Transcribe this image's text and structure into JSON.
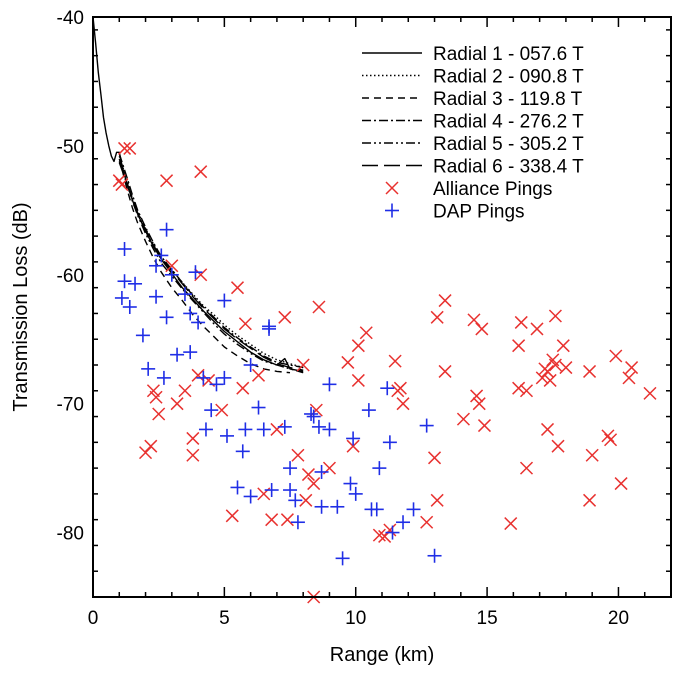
{
  "chart_data": {
    "type": "line",
    "xlabel": "Range (km)",
    "ylabel": "Transmission Loss (dB)",
    "xlim": [
      0,
      22
    ],
    "ylim": [
      -85,
      -40
    ],
    "xticks": [
      0,
      5,
      10,
      15,
      20
    ],
    "yticks": [
      -40,
      -50,
      -60,
      -70,
      -80
    ],
    "grid": false,
    "legend_position": "top-right",
    "series": [
      {
        "name": "Radial 1 - 057.6 T",
        "style": "solid",
        "color": "#000000",
        "x": [
          0.0,
          0.1,
          0.2,
          0.3,
          0.4,
          0.5,
          0.6,
          0.7,
          0.8,
          0.9,
          1.0,
          1.1,
          1.3,
          1.5,
          1.7,
          2.0,
          2.3,
          2.6,
          3.0,
          3.4,
          3.8,
          4.2,
          4.6,
          5.0,
          5.5,
          6.0,
          6.5,
          7.0,
          7.3,
          7.5,
          8.0
        ],
        "y": [
          -40.0,
          -42.0,
          -44.3,
          -46.0,
          -47.8,
          -49.0,
          -50.0,
          -50.8,
          -51.2,
          -50.5,
          -50.5,
          -51.5,
          -53.0,
          -54.2,
          -55.3,
          -56.6,
          -57.8,
          -58.8,
          -59.9,
          -61.0,
          -61.9,
          -62.8,
          -63.6,
          -64.4,
          -65.2,
          -66.0,
          -66.6,
          -67.0,
          -66.5,
          -67.3,
          -67.5
        ]
      },
      {
        "name": "Radial 2 - 090.8 T",
        "style": "dotted",
        "color": "#000000",
        "x": [
          1.0,
          1.3,
          1.5,
          1.7,
          2.0,
          2.3,
          2.6,
          3.0,
          3.4,
          3.8,
          4.2,
          4.6,
          5.0,
          5.5,
          6.0,
          6.5,
          7.0,
          7.5,
          8.0
        ],
        "y": [
          -50.8,
          -52.7,
          -54.0,
          -55.1,
          -56.4,
          -57.6,
          -58.6,
          -59.6,
          -60.6,
          -61.5,
          -62.4,
          -63.1,
          -63.9,
          -64.7,
          -65.4,
          -66.1,
          -66.6,
          -66.9,
          -67.2
        ]
      },
      {
        "name": "Radial 3 - 119.8 T",
        "style": "dashed",
        "color": "#000000",
        "x": [
          1.0,
          1.3,
          1.5,
          1.7,
          2.0,
          2.3,
          2.6,
          3.0,
          3.4,
          3.8,
          4.2,
          4.6,
          5.0,
          5.5,
          6.0,
          6.5,
          7.0,
          7.5
        ],
        "y": [
          -51.0,
          -53.4,
          -54.8,
          -56.0,
          -57.4,
          -58.7,
          -59.8,
          -61.0,
          -62.0,
          -63.1,
          -64.0,
          -64.8,
          -65.6,
          -66.3,
          -66.9,
          -67.3,
          -67.5,
          -67.6
        ]
      },
      {
        "name": "Radial 4 - 276.2 T",
        "style": "dashdot",
        "color": "#000000",
        "x": [
          1.0,
          1.3,
          1.5,
          1.7,
          2.0,
          2.3,
          2.6,
          3.0,
          3.4,
          3.8,
          4.2,
          4.6,
          5.0,
          5.5,
          6.0,
          6.5,
          7.0,
          7.5,
          8.0
        ],
        "y": [
          -50.6,
          -52.5,
          -53.8,
          -55.0,
          -56.3,
          -57.5,
          -58.6,
          -59.6,
          -60.6,
          -61.6,
          -62.5,
          -63.3,
          -64.1,
          -64.9,
          -65.6,
          -66.3,
          -66.8,
          -67.0,
          -67.2
        ]
      },
      {
        "name": "Radial 5 - 305.2 T",
        "style": "dashdotdot",
        "color": "#000000",
        "x": [
          1.0,
          1.3,
          1.5,
          1.7,
          2.0,
          2.3,
          2.6,
          3.0,
          3.4,
          3.8,
          4.2,
          4.6,
          5.0,
          5.5,
          6.0,
          6.5,
          7.0,
          7.5,
          8.0
        ],
        "y": [
          -51.3,
          -53.0,
          -54.3,
          -55.4,
          -56.8,
          -58.0,
          -59.1,
          -60.1,
          -61.1,
          -62.0,
          -62.9,
          -63.8,
          -64.6,
          -65.4,
          -66.1,
          -66.7,
          -67.0,
          -67.3,
          -67.6
        ]
      },
      {
        "name": "Radial 6 - 338.4 T",
        "style": "longdash",
        "color": "#000000",
        "x": [
          1.0,
          1.3,
          1.5,
          1.7,
          2.0,
          2.3,
          2.6,
          3.0,
          3.4,
          3.8,
          4.2,
          4.6,
          5.0,
          5.5,
          6.0,
          6.5,
          7.0,
          7.5,
          8.0
        ],
        "y": [
          -51.2,
          -52.9,
          -54.1,
          -55.2,
          -56.5,
          -57.7,
          -58.7,
          -59.7,
          -60.7,
          -61.7,
          -62.6,
          -63.4,
          -64.2,
          -65.0,
          -65.7,
          -66.4,
          -66.9,
          -67.2,
          -67.4
        ]
      }
    ],
    "scatter": [
      {
        "name": "Alliance Pings",
        "marker": "x",
        "color": "#e8312f",
        "points": [
          [
            1.0,
            -52.7
          ],
          [
            1.1,
            -53.0
          ],
          [
            1.2,
            -50.2
          ],
          [
            1.4,
            -50.2
          ],
          [
            2.0,
            -73.8
          ],
          [
            2.2,
            -73.3
          ],
          [
            2.3,
            -69.0
          ],
          [
            2.4,
            -69.5
          ],
          [
            2.5,
            -70.8
          ],
          [
            2.8,
            -52.7
          ],
          [
            3.0,
            -59.3
          ],
          [
            3.2,
            -70.0
          ],
          [
            3.5,
            -69.0
          ],
          [
            3.8,
            -74.0
          ],
          [
            3.8,
            -72.7
          ],
          [
            4.0,
            -67.8
          ],
          [
            4.1,
            -52.0
          ],
          [
            4.1,
            -60.0
          ],
          [
            4.4,
            -68.2
          ],
          [
            4.9,
            -70.5
          ],
          [
            5.3,
            -78.7
          ],
          [
            5.5,
            -61.0
          ],
          [
            5.7,
            -68.8
          ],
          [
            5.8,
            -63.8
          ],
          [
            6.3,
            -67.8
          ],
          [
            6.5,
            -77.0
          ],
          [
            6.8,
            -79.0
          ],
          [
            7.0,
            -72.0
          ],
          [
            7.3,
            -63.3
          ],
          [
            7.4,
            -79.0
          ],
          [
            7.8,
            -74.0
          ],
          [
            8.0,
            -67.0
          ],
          [
            8.1,
            -77.5
          ],
          [
            8.2,
            -75.5
          ],
          [
            8.4,
            -76.2
          ],
          [
            8.4,
            -85.0
          ],
          [
            8.5,
            -70.5
          ],
          [
            8.6,
            -62.5
          ],
          [
            9.0,
            -75.0
          ],
          [
            9.7,
            -66.8
          ],
          [
            9.9,
            -73.3
          ],
          [
            10.1,
            -68.2
          ],
          [
            10.1,
            -65.5
          ],
          [
            10.4,
            -64.5
          ],
          [
            10.9,
            -80.2
          ],
          [
            11.1,
            -80.3
          ],
          [
            11.3,
            -79.8
          ],
          [
            11.5,
            -66.7
          ],
          [
            11.6,
            -69.0
          ],
          [
            11.7,
            -68.8
          ],
          [
            11.8,
            -70.0
          ],
          [
            12.7,
            -79.2
          ],
          [
            13.0,
            -74.2
          ],
          [
            13.1,
            -63.3
          ],
          [
            13.1,
            -77.5
          ],
          [
            13.4,
            -62.0
          ],
          [
            13.4,
            -67.5
          ],
          [
            14.1,
            -71.2
          ],
          [
            14.5,
            -63.5
          ],
          [
            14.6,
            -69.4
          ],
          [
            14.7,
            -70.0
          ],
          [
            14.8,
            -64.2
          ],
          [
            14.9,
            -71.7
          ],
          [
            15.9,
            -79.3
          ],
          [
            16.2,
            -68.8
          ],
          [
            16.2,
            -65.5
          ],
          [
            16.3,
            -63.7
          ],
          [
            16.5,
            -75.0
          ],
          [
            16.5,
            -69.0
          ],
          [
            16.9,
            -64.2
          ],
          [
            17.1,
            -68.0
          ],
          [
            17.2,
            -67.3
          ],
          [
            17.3,
            -67.5
          ],
          [
            17.4,
            -68.2
          ],
          [
            17.5,
            -66.6
          ],
          [
            17.6,
            -67.0
          ],
          [
            17.7,
            -73.3
          ],
          [
            17.9,
            -65.5
          ],
          [
            18.0,
            -67.2
          ],
          [
            18.9,
            -67.5
          ],
          [
            18.9,
            -77.5
          ],
          [
            19.0,
            -74.0
          ],
          [
            19.6,
            -72.5
          ],
          [
            19.7,
            -72.8
          ],
          [
            19.9,
            -66.3
          ],
          [
            20.1,
            -76.2
          ],
          [
            20.4,
            -68.0
          ],
          [
            20.5,
            -67.2
          ],
          [
            21.2,
            -69.2
          ],
          [
            17.3,
            -72.0
          ],
          [
            17.6,
            -63.2
          ]
        ]
      },
      {
        "name": "DAP Pings",
        "marker": "+",
        "color": "#1f2ee6",
        "points": [
          [
            1.1,
            -61.8
          ],
          [
            1.2,
            -58.0
          ],
          [
            1.2,
            -60.5
          ],
          [
            1.4,
            -62.5
          ],
          [
            1.6,
            -60.7
          ],
          [
            1.9,
            -64.7
          ],
          [
            2.1,
            -67.3
          ],
          [
            2.4,
            -59.3
          ],
          [
            2.4,
            -61.7
          ],
          [
            2.6,
            -58.5
          ],
          [
            2.7,
            -68.0
          ],
          [
            2.8,
            -63.3
          ],
          [
            2.8,
            -56.5
          ],
          [
            3.0,
            -60.0
          ],
          [
            3.2,
            -66.2
          ],
          [
            3.5,
            -61.5
          ],
          [
            3.7,
            -66.0
          ],
          [
            3.7,
            -63.0
          ],
          [
            3.9,
            -59.8
          ],
          [
            4.0,
            -63.7
          ],
          [
            4.2,
            -68.0
          ],
          [
            4.3,
            -72.0
          ],
          [
            4.5,
            -70.5
          ],
          [
            4.7,
            -68.5
          ],
          [
            5.0,
            -68.0
          ],
          [
            5.0,
            -62.0
          ],
          [
            5.1,
            -72.5
          ],
          [
            5.5,
            -76.5
          ],
          [
            5.7,
            -73.7
          ],
          [
            5.8,
            -72.0
          ],
          [
            6.0,
            -67.0
          ],
          [
            6.0,
            -77.2
          ],
          [
            6.3,
            -70.3
          ],
          [
            6.5,
            -72.0
          ],
          [
            6.7,
            -64.0
          ],
          [
            6.7,
            -64.2
          ],
          [
            6.8,
            -76.7
          ],
          [
            7.3,
            -71.8
          ],
          [
            7.5,
            -76.7
          ],
          [
            7.5,
            -75.0
          ],
          [
            7.7,
            -77.5
          ],
          [
            7.8,
            -79.2
          ],
          [
            8.3,
            -70.8
          ],
          [
            8.4,
            -71.0
          ],
          [
            8.6,
            -71.8
          ],
          [
            8.7,
            -75.3
          ],
          [
            8.7,
            -78.0
          ],
          [
            9.0,
            -68.5
          ],
          [
            9.0,
            -72.0
          ],
          [
            9.3,
            -78.0
          ],
          [
            9.5,
            -82.0
          ],
          [
            9.8,
            -76.2
          ],
          [
            9.9,
            -72.7
          ],
          [
            10.0,
            -77.0
          ],
          [
            10.5,
            -70.5
          ],
          [
            10.6,
            -78.2
          ],
          [
            10.8,
            -78.2
          ],
          [
            10.9,
            -75.0
          ],
          [
            11.2,
            -68.8
          ],
          [
            11.3,
            -73.0
          ],
          [
            11.4,
            -80.0
          ],
          [
            11.8,
            -79.2
          ],
          [
            12.2,
            -78.2
          ],
          [
            12.7,
            -71.7
          ],
          [
            13.0,
            -81.8
          ]
        ]
      }
    ]
  }
}
